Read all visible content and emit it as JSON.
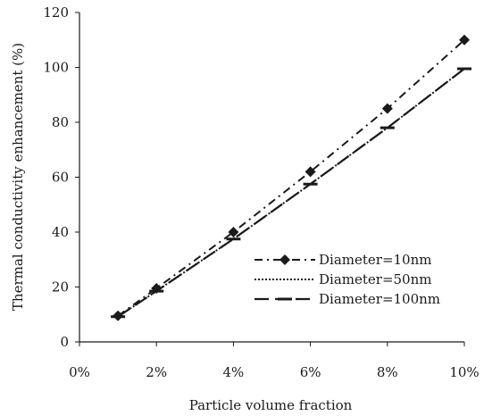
{
  "chart_data": {
    "type": "line",
    "title": "",
    "xlabel": "Particle volume fraction",
    "ylabel": "Thermal conductivity enhancement (%)",
    "x": [
      1,
      2,
      4,
      6,
      8,
      10
    ],
    "x_unit": "%",
    "xlim": [
      0,
      10
    ],
    "xticks": [
      0,
      2,
      4,
      6,
      8,
      10
    ],
    "xtick_labels": [
      "0%",
      "2%",
      "4%",
      "6%",
      "8%",
      "10%"
    ],
    "ylim": [
      0,
      120
    ],
    "yticks": [
      0,
      20,
      40,
      60,
      80,
      100,
      120
    ],
    "ytick_labels": [
      "0",
      "20",
      "40",
      "60",
      "80",
      "100",
      "120"
    ],
    "grid": false,
    "legend_position": "lower-right",
    "series": [
      {
        "name": "Diameter=10nm",
        "values": [
          9.5,
          19.5,
          40,
          62,
          85,
          110
        ],
        "line_style": "dash-dot",
        "marker": "diamond",
        "color": "#1a1a1a"
      },
      {
        "name": "Diameter=50nm",
        "values": [
          9.2,
          18.5,
          37.5,
          57.5,
          78,
          99.5
        ],
        "line_style": "dotted",
        "marker": "none",
        "color": "#1a1a1a"
      },
      {
        "name": "Diameter=100nm",
        "values": [
          9.2,
          18.5,
          37.5,
          57.5,
          78,
          99.5
        ],
        "line_style": "long-dash",
        "marker": "dash",
        "color": "#1a1a1a"
      }
    ]
  }
}
